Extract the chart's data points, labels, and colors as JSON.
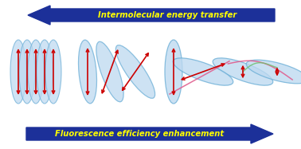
{
  "top_arrow_text": "Intermolecular energy transfer",
  "bottom_arrow_text": "Fluorescence efficiency enhancement",
  "arrow_color": "#1c3099",
  "text_color": "#ffff00",
  "ellipse_facecolor": "#bdd9f0",
  "ellipse_edgecolor": "#6aaed6",
  "red_arrow_color": "#cc0000",
  "pink_line_color": "#e06090",
  "green_line_color": "#70c070",
  "background_color": "#ffffff",
  "figsize": [
    3.78,
    1.87
  ],
  "dpi": 100
}
